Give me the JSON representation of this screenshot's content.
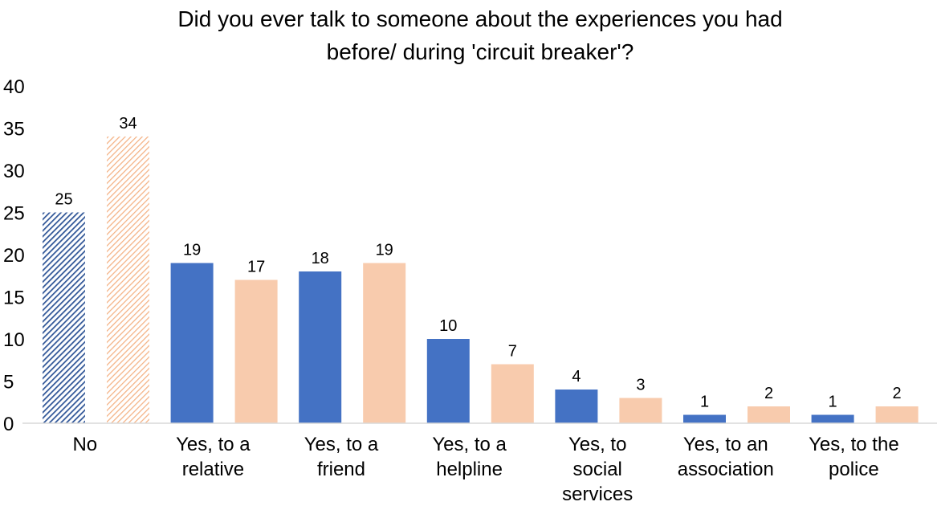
{
  "chart_data": {
    "type": "bar",
    "title": "Did you ever talk to someone about the experiences you had before/ during 'circuit breaker'?",
    "title_lines": [
      "Did you ever talk to someone about the experiences you had",
      "before/ during 'circuit breaker'?"
    ],
    "categories": [
      "No",
      "Yes, to a relative",
      "Yes, to a friend",
      "Yes, to a helpline",
      "Yes, to social services",
      "Yes, to an association",
      "Yes, to the police"
    ],
    "category_lines": [
      [
        "No"
      ],
      [
        "Yes, to a",
        "relative"
      ],
      [
        "Yes, to a",
        "friend"
      ],
      [
        "Yes, to a",
        "helpline"
      ],
      [
        "Yes, to",
        "social",
        "services"
      ],
      [
        "Yes, to an",
        "association"
      ],
      [
        "Yes, to the",
        "police"
      ]
    ],
    "series": [
      {
        "values": [
          25,
          19,
          18,
          10,
          4,
          1,
          1
        ],
        "color": "#4472C4"
      },
      {
        "values": [
          34,
          17,
          19,
          7,
          3,
          2,
          2
        ],
        "color": "#F8CBAD"
      }
    ],
    "first_category_pattern": "diagonal-hatch",
    "ylim": [
      0,
      40
    ],
    "yticks": [
      "0",
      "5",
      "10",
      "15",
      "20",
      "25",
      "30",
      "35",
      "40"
    ],
    "xlabel": "",
    "ylabel": "",
    "grid": false,
    "legend": "none"
  }
}
